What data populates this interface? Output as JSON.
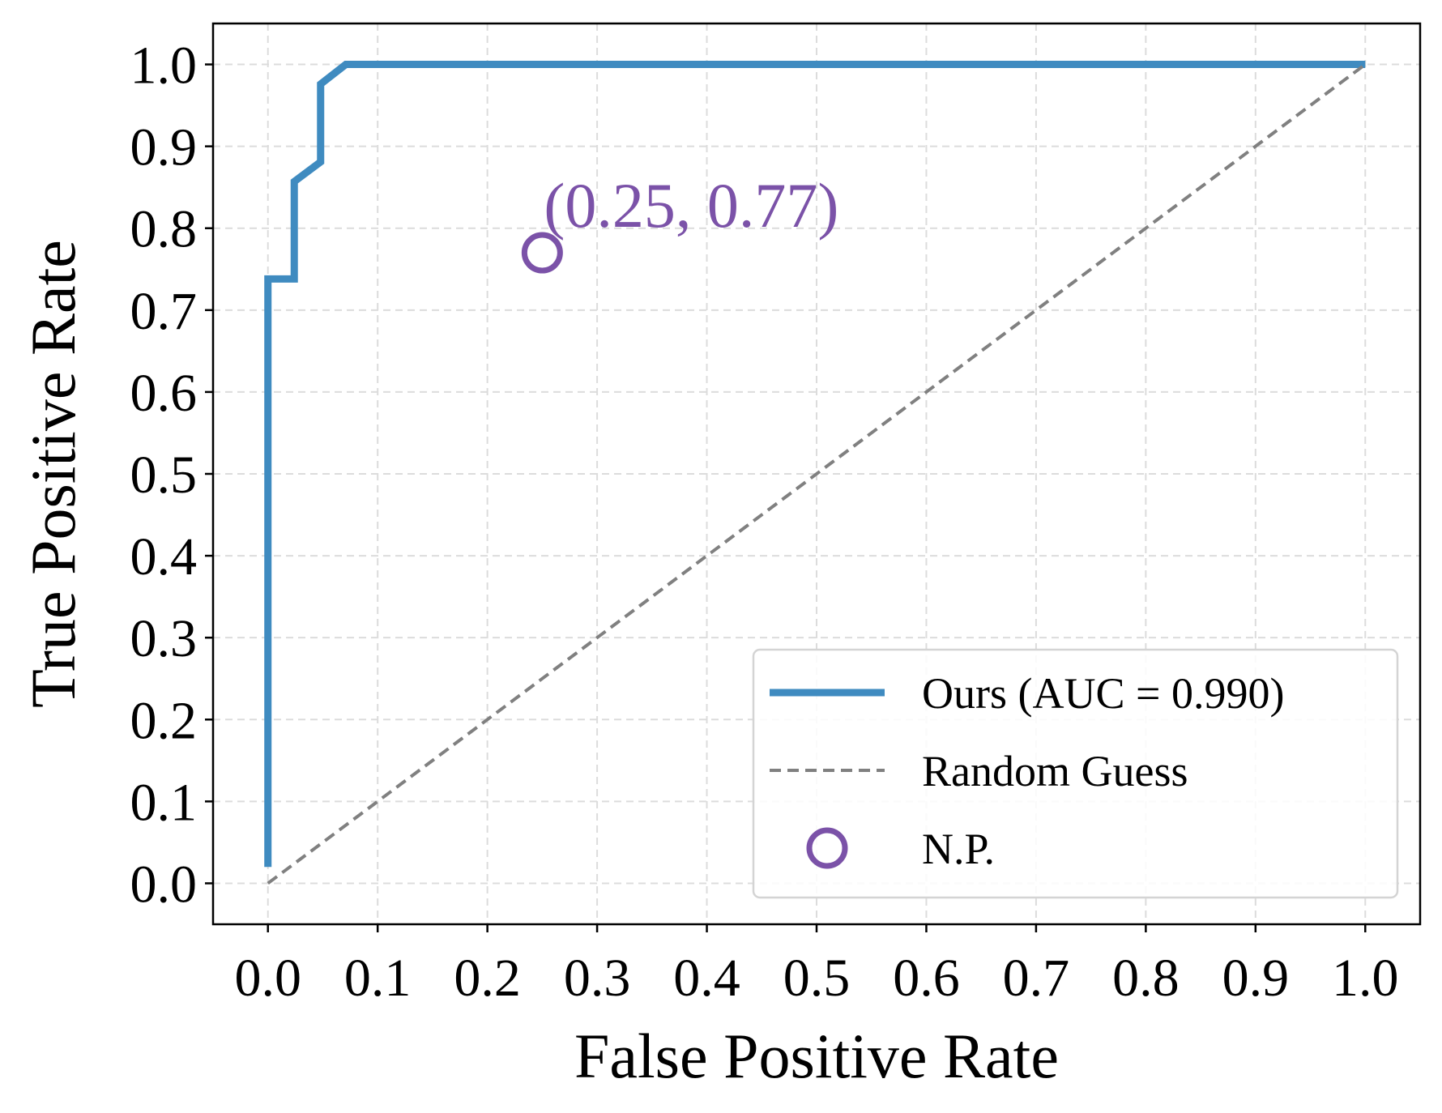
{
  "chart_data": {
    "type": "line",
    "title": "",
    "xlabel": "False Positive Rate",
    "ylabel": "True Positive Rate",
    "xlim": [
      -0.05,
      1.05
    ],
    "ylim": [
      -0.05,
      1.05
    ],
    "xticks": [
      0.0,
      0.1,
      0.2,
      0.3,
      0.4,
      0.5,
      0.6,
      0.7,
      0.8,
      0.9,
      1.0
    ],
    "yticks": [
      0.0,
      0.1,
      0.2,
      0.3,
      0.4,
      0.5,
      0.6,
      0.7,
      0.8,
      0.9,
      1.0
    ],
    "xtick_labels": [
      "0.0",
      "0.1",
      "0.2",
      "0.3",
      "0.4",
      "0.5",
      "0.6",
      "0.7",
      "0.8",
      "0.9",
      "1.0"
    ],
    "ytick_labels": [
      "0.0",
      "0.1",
      "0.2",
      "0.3",
      "0.4",
      "0.5",
      "0.6",
      "0.7",
      "0.8",
      "0.9",
      "1.0"
    ],
    "grid": true,
    "legend_position": "lower-right",
    "series": [
      {
        "name": "Ours (AUC = 0.990)",
        "color": "#3f8bc0",
        "style": "solid",
        "x": [
          0.0,
          0.0,
          0.024,
          0.024,
          0.048,
          0.048,
          0.071,
          1.0
        ],
        "y": [
          0.02,
          0.738,
          0.738,
          0.857,
          0.881,
          0.976,
          1.0,
          1.0
        ]
      },
      {
        "name": "Random Guess",
        "color": "#808080",
        "style": "dashed",
        "x": [
          0.0,
          1.0
        ],
        "y": [
          0.0,
          1.0
        ]
      },
      {
        "name": "N.P.",
        "color": "#7b52a8",
        "style": "marker-hollow-circle",
        "x": [
          0.25
        ],
        "y": [
          0.77
        ]
      }
    ],
    "annotations": [
      {
        "text": "(0.25, 0.77)",
        "x": 0.25,
        "y": 0.77,
        "color": "#7b52a8"
      }
    ]
  }
}
